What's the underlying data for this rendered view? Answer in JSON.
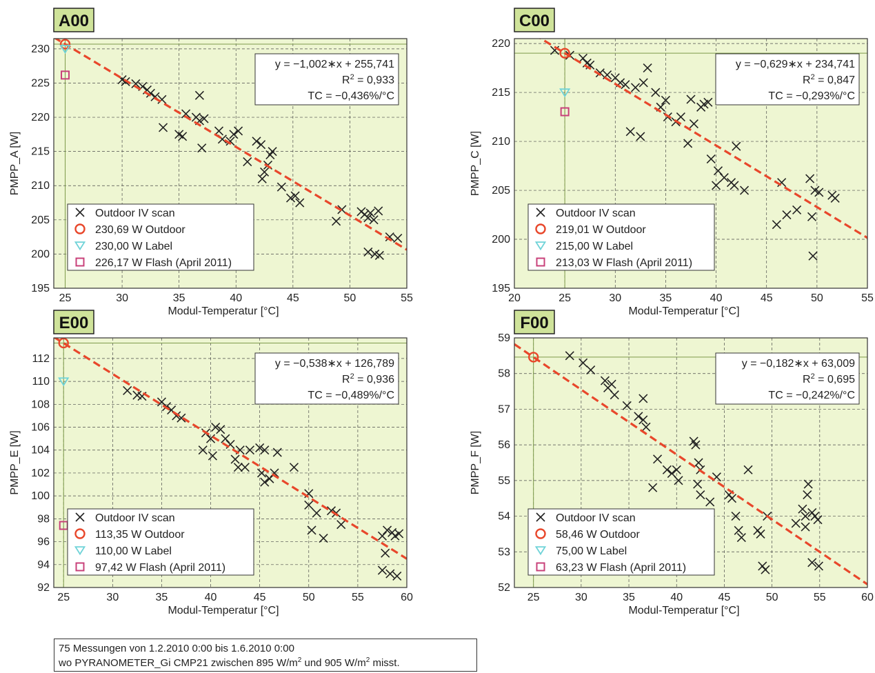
{
  "colors": {
    "plot_bg": "#eef6d2",
    "grid": "#4a4a4a",
    "panel_title_bg": "#cfe39a",
    "fit_line": "#e8472b",
    "outdoor": "#e8472b",
    "label": "#6fd3d8",
    "flash": "#c8407a",
    "scan": "#222222"
  },
  "legend_labels": {
    "scan": "Outdoor IV scan"
  },
  "footnote": {
    "line1": "75 Messungen von 1.2.2010 0:00 bis 1.6.2010 0:00",
    "line2_pre": "wo PYRANOMETER_Gi CMP21 zwischen 895 W/m",
    "line2_sup1": "2",
    "line2_mid": " und 905 W/m",
    "line2_sup2": "2",
    "line2_post": " misst."
  },
  "chart_data": [
    {
      "type": "scatter",
      "id": "A00",
      "title": "A00",
      "xlabel": "Modul-Temperatur [°C]",
      "ylabel": "PMPP_A [W]",
      "xlim": [
        24,
        55
      ],
      "ylim": [
        195,
        231.5
      ],
      "xticks": [
        25,
        30,
        35,
        40,
        45,
        50,
        55
      ],
      "yticks": [
        195,
        200,
        205,
        210,
        215,
        220,
        225,
        230
      ],
      "grid": true,
      "legend_position": "bottom-left",
      "equation": "y = −1,002∗x + 255,741",
      "r2_label": "R",
      "r2_sup": "2",
      "r2_value": " = 0,933",
      "tc": "TC = −0,436%/°C",
      "fit": {
        "slope": -1.002,
        "intercept": 255.741
      },
      "reference_lines": {
        "x": 25,
        "y": 230.69
      },
      "markers": {
        "outdoor": {
          "x": 25,
          "y": 230.69,
          "label": "230,69 W Outdoor"
        },
        "label": {
          "x": 25,
          "y": 230.0,
          "label": "230,00 W Label"
        },
        "flash": {
          "x": 25,
          "y": 226.17,
          "label": "226,17 W Flash (April 2011)"
        }
      },
      "scan_points": [
        [
          30,
          225.5
        ],
        [
          30.3,
          225.2
        ],
        [
          31.2,
          224.9
        ],
        [
          31.8,
          224.5
        ],
        [
          32.2,
          224.0
        ],
        [
          32.5,
          223.5
        ],
        [
          32.9,
          223.0
        ],
        [
          33.5,
          222.6
        ],
        [
          33.6,
          218.5
        ],
        [
          35,
          217.5
        ],
        [
          35.3,
          217.2
        ],
        [
          35.6,
          220.5
        ],
        [
          36.5,
          220.0
        ],
        [
          36.8,
          219.5
        ],
        [
          37.2,
          219.8
        ],
        [
          36.8,
          223.2
        ],
        [
          37,
          215.5
        ],
        [
          38.5,
          218.0
        ],
        [
          38.8,
          216.8
        ],
        [
          39.8,
          217.5
        ],
        [
          40.2,
          218.0
        ],
        [
          39.5,
          216.5
        ],
        [
          41,
          213.5
        ],
        [
          41.8,
          216.5
        ],
        [
          42.2,
          216.0
        ],
        [
          42.5,
          212.0
        ],
        [
          42.3,
          211.0
        ],
        [
          43,
          214.5
        ],
        [
          43.2,
          215.0
        ],
        [
          42.8,
          213.0
        ],
        [
          44,
          209.8
        ],
        [
          44.8,
          208.2
        ],
        [
          45.2,
          208.5
        ],
        [
          45.6,
          207.5
        ],
        [
          48.8,
          204.8
        ],
        [
          49.3,
          206.5
        ],
        [
          51,
          206.2
        ],
        [
          51.3,
          205.8
        ],
        [
          51.6,
          205.3
        ],
        [
          51.8,
          206.0
        ],
        [
          52.1,
          205.0
        ],
        [
          52.5,
          206.3
        ],
        [
          51.6,
          200.3
        ],
        [
          52.2,
          200.0
        ],
        [
          52.6,
          199.8
        ],
        [
          53.5,
          202.5
        ],
        [
          54.2,
          202.3
        ]
      ]
    },
    {
      "type": "scatter",
      "id": "C00",
      "title": "C00",
      "xlabel": "Modul-Temperatur [°C]",
      "ylabel": "PMPP_C [W]",
      "xlim": [
        20,
        55
      ],
      "ylim": [
        195,
        220.5
      ],
      "xticks": [
        20,
        25,
        30,
        35,
        40,
        45,
        50,
        55
      ],
      "yticks": [
        195,
        200,
        205,
        210,
        215,
        220
      ],
      "grid": true,
      "legend_position": "bottom-left",
      "equation": "y = −0,629∗x + 234,741",
      "r2_label": "R",
      "r2_sup": "2",
      "r2_value": " = 0,847",
      "tc": "TC = −0,293%/°C",
      "fit": {
        "slope": -0.629,
        "intercept": 234.741
      },
      "reference_lines": {
        "x": 25,
        "y": 219.01
      },
      "markers": {
        "outdoor": {
          "x": 25,
          "y": 219.01,
          "label": "219,01 W Outdoor"
        },
        "label": {
          "x": 25,
          "y": 215.0,
          "label": "215,00 W Label"
        },
        "flash": {
          "x": 25,
          "y": 213.03,
          "label": "213,03 W Flash (April 2011)"
        }
      },
      "scan_points": [
        [
          24,
          219.3
        ],
        [
          25.5,
          218.8
        ],
        [
          26.8,
          218.5
        ],
        [
          27.2,
          218.0
        ],
        [
          27.5,
          217.8
        ],
        [
          28.5,
          217.0
        ],
        [
          29.2,
          216.8
        ],
        [
          30,
          216.5
        ],
        [
          30.5,
          216.0
        ],
        [
          31,
          215.8
        ],
        [
          32,
          215.5
        ],
        [
          32.8,
          216.0
        ],
        [
          33.2,
          217.5
        ],
        [
          34,
          215.0
        ],
        [
          34.5,
          213.5
        ],
        [
          35,
          214.2
        ],
        [
          35.2,
          212.5
        ],
        [
          36,
          212.0
        ],
        [
          36.5,
          212.5
        ],
        [
          31.5,
          211.0
        ],
        [
          32.5,
          210.5
        ],
        [
          37.2,
          209.8
        ],
        [
          37.5,
          214.3
        ],
        [
          38.5,
          213.5
        ],
        [
          38.8,
          213.8
        ],
        [
          37.8,
          211.8
        ],
        [
          39.2,
          214.0
        ],
        [
          39.5,
          208.2
        ],
        [
          40,
          205.5
        ],
        [
          40.2,
          207.0
        ],
        [
          40.8,
          206.3
        ],
        [
          41.5,
          205.8
        ],
        [
          41.8,
          205.5
        ],
        [
          42,
          209.5
        ],
        [
          42.8,
          205.0
        ],
        [
          46,
          201.5
        ],
        [
          46.5,
          205.8
        ],
        [
          47,
          202.5
        ],
        [
          48,
          203.0
        ],
        [
          49.3,
          206.2
        ],
        [
          49.8,
          205.0
        ],
        [
          50.2,
          204.8
        ],
        [
          51.5,
          204.5
        ],
        [
          51.8,
          204.2
        ],
        [
          49.5,
          202.3
        ],
        [
          49.6,
          198.3
        ]
      ]
    },
    {
      "type": "scatter",
      "id": "E00",
      "title": "E00",
      "xlabel": "Modul-Temperatur [°C]",
      "ylabel": "PMPP_E [W]",
      "xlim": [
        24,
        60
      ],
      "ylim": [
        92,
        113.8
      ],
      "xticks": [
        25,
        30,
        35,
        40,
        45,
        50,
        55,
        60
      ],
      "yticks": [
        92,
        94,
        96,
        98,
        100,
        102,
        104,
        106,
        108,
        110,
        112
      ],
      "grid": true,
      "legend_position": "bottom-left",
      "equation": "y = −0,538∗x + 126,789",
      "r2_label": "R",
      "r2_sup": "2",
      "r2_value": " = 0,936",
      "tc": "TC = −0,489%/°C",
      "fit": {
        "slope": -0.538,
        "intercept": 126.789
      },
      "reference_lines": {
        "x": 25,
        "y": 113.35
      },
      "markers": {
        "outdoor": {
          "x": 25,
          "y": 113.35,
          "label": "113,35 W Outdoor"
        },
        "label": {
          "x": 25,
          "y": 110.0,
          "label": "110,00 W Label"
        },
        "flash": {
          "x": 25,
          "y": 97.42,
          "label": "97,42 W Flash (April 2011)"
        }
      },
      "scan_points": [
        [
          31.5,
          109.2
        ],
        [
          32.5,
          108.8
        ],
        [
          33,
          108.7
        ],
        [
          35,
          108.2
        ],
        [
          35.5,
          107.8
        ],
        [
          36,
          107.5
        ],
        [
          36.5,
          107.0
        ],
        [
          37,
          106.8
        ],
        [
          39.2,
          104.0
        ],
        [
          39.5,
          105.5
        ],
        [
          40,
          105.0
        ],
        [
          40.5,
          106.0
        ],
        [
          40.2,
          103.5
        ],
        [
          41,
          105.8
        ],
        [
          41.5,
          105.0
        ],
        [
          42,
          104.5
        ],
        [
          42.5,
          103.2
        ],
        [
          43,
          104.0
        ],
        [
          42.8,
          102.5
        ],
        [
          43.5,
          102.5
        ],
        [
          44,
          104.0
        ],
        [
          45,
          104.2
        ],
        [
          45.5,
          104.0
        ],
        [
          45.2,
          102.0
        ],
        [
          45.5,
          101.2
        ],
        [
          46,
          101.5
        ],
        [
          46.5,
          102.0
        ],
        [
          46.8,
          103.8
        ],
        [
          48.5,
          102.5
        ],
        [
          50,
          100.2
        ],
        [
          50,
          99.2
        ],
        [
          50.3,
          97.0
        ],
        [
          50.8,
          98.5
        ],
        [
          51.5,
          96.3
        ],
        [
          52.3,
          98.7
        ],
        [
          52.8,
          98.5
        ],
        [
          53.3,
          97.5
        ],
        [
          57.5,
          93.5
        ],
        [
          57.8,
          95.0
        ],
        [
          58,
          97.0
        ],
        [
          58.5,
          96.8
        ],
        [
          58.8,
          96.5
        ],
        [
          59.2,
          96.7
        ],
        [
          58.3,
          93.2
        ],
        [
          59,
          93.0
        ],
        [
          57.5,
          96.5
        ]
      ]
    },
    {
      "type": "scatter",
      "id": "F00",
      "title": "F00",
      "xlabel": "Modul-Temperatur [°C]",
      "ylabel": "PMPP_F [W]",
      "xlim": [
        23,
        60
      ],
      "ylim": [
        52,
        59
      ],
      "xticks": [
        25,
        30,
        35,
        40,
        45,
        50,
        55,
        60
      ],
      "yticks": [
        52,
        53,
        54,
        55,
        56,
        57,
        58,
        59
      ],
      "grid": true,
      "legend_position": "bottom-left",
      "equation": "y = −0,182∗x + 63,009",
      "r2_label": "R",
      "r2_sup": "2",
      "r2_value": " = 0,695",
      "tc": "TC = −0,242%/°C",
      "fit": {
        "slope": -0.182,
        "intercept": 63.009
      },
      "reference_lines": {
        "x": 25,
        "y": 58.46
      },
      "markers": {
        "outdoor": {
          "x": 25,
          "y": 58.46,
          "label": "58,46 W Outdoor"
        },
        "label": {
          "x": 25,
          "y": 75.0,
          "label": "75,00 W Label"
        },
        "flash": {
          "x": 25,
          "y": 63.23,
          "label": "63,23 W Flash (April 2011)"
        }
      },
      "scan_points": [
        [
          28.8,
          58.5
        ],
        [
          30.2,
          58.3
        ],
        [
          31,
          58.1
        ],
        [
          32.5,
          57.8
        ],
        [
          32.8,
          57.6
        ],
        [
          33.2,
          57.7
        ],
        [
          33.5,
          57.4
        ],
        [
          34.8,
          57.1
        ],
        [
          36,
          56.8
        ],
        [
          36.5,
          56.7
        ],
        [
          36.5,
          57.3
        ],
        [
          36.8,
          56.5
        ],
        [
          37.5,
          54.8
        ],
        [
          38,
          55.6
        ],
        [
          39,
          55.3
        ],
        [
          39.5,
          55.2
        ],
        [
          40,
          55.3
        ],
        [
          40.2,
          55.0
        ],
        [
          41.8,
          56.1
        ],
        [
          42,
          56.0
        ],
        [
          42.3,
          55.5
        ],
        [
          42.5,
          55.3
        ],
        [
          42.2,
          54.9
        ],
        [
          42.5,
          54.6
        ],
        [
          43.5,
          54.4
        ],
        [
          44.2,
          55.1
        ],
        [
          45.5,
          54.6
        ],
        [
          45.8,
          54.5
        ],
        [
          46.2,
          54.0
        ],
        [
          46.5,
          53.6
        ],
        [
          46.8,
          53.4
        ],
        [
          47.5,
          55.3
        ],
        [
          48.5,
          53.6
        ],
        [
          48.8,
          53.5
        ],
        [
          49,
          52.6
        ],
        [
          49.3,
          52.5
        ],
        [
          49.5,
          54.0
        ],
        [
          52.5,
          53.8
        ],
        [
          53.2,
          54.2
        ],
        [
          53.5,
          54.0
        ],
        [
          53.8,
          54.9
        ],
        [
          53.7,
          54.6
        ],
        [
          54.2,
          54.1
        ],
        [
          54.5,
          54.0
        ],
        [
          54.8,
          53.9
        ],
        [
          53.5,
          53.7
        ],
        [
          54.2,
          52.7
        ],
        [
          54.9,
          52.6
        ]
      ]
    }
  ]
}
